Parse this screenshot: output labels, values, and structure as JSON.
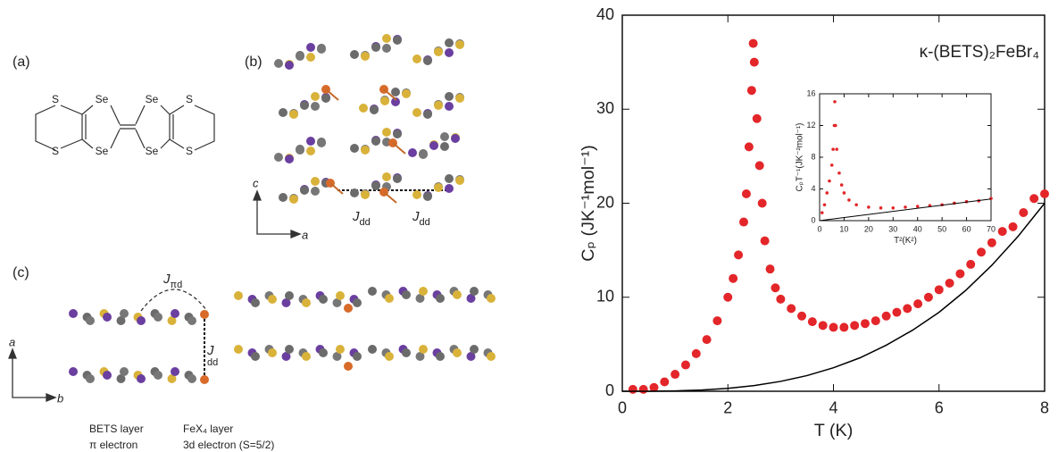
{
  "chart_data": [
    {
      "type": "scatter",
      "xlabel": "T (K)",
      "ylabel": "Cₚ (JK⁻¹mol⁻¹)",
      "annotation": "κ-(BETS)₂FeBr₄",
      "xlim": [
        0,
        8
      ],
      "ylim": [
        0,
        40
      ],
      "xticks": [
        0,
        2,
        4,
        6,
        8
      ],
      "yticks": [
        0,
        10,
        20,
        30,
        40
      ],
      "series": [
        {
          "color": "#e3262a",
          "style": "points",
          "x": [
            0.2,
            0.4,
            0.6,
            0.8,
            1.0,
            1.2,
            1.4,
            1.6,
            1.8,
            2.0,
            2.1,
            2.2,
            2.3,
            2.35,
            2.4,
            2.45,
            2.48,
            2.5,
            2.55,
            2.6,
            2.65,
            2.7,
            2.8,
            2.9,
            3.0,
            3.2,
            3.4,
            3.6,
            3.8,
            4.0,
            4.2,
            4.4,
            4.6,
            4.8,
            5.0,
            5.2,
            5.4,
            5.6,
            5.8,
            6.0,
            6.2,
            6.4,
            6.6,
            6.8,
            7.0,
            7.2,
            7.4,
            7.6,
            7.8,
            8.0
          ],
          "values": [
            0.2,
            0.2,
            0.4,
            1,
            1.8,
            2.8,
            4,
            5.5,
            7.5,
            10,
            12,
            14.5,
            18,
            21,
            26,
            32,
            37,
            35,
            29,
            24,
            20,
            16,
            13,
            11,
            9.8,
            8.8,
            8,
            7.4,
            7,
            6.8,
            6.8,
            7,
            7.2,
            7.5,
            8,
            8.4,
            8.8,
            9.3,
            10,
            10.8,
            11.5,
            12.5,
            13.5,
            14.8,
            15.8,
            17,
            17.5,
            19,
            20.5,
            21
          ]
        },
        {
          "color": "#000000",
          "style": "line",
          "x": [
            0,
            0.5,
            1,
            1.5,
            2,
            2.5,
            3,
            3.5,
            4,
            4.5,
            5,
            5.5,
            6,
            6.5,
            7,
            7.5,
            8
          ],
          "values": [
            0,
            0.005,
            0.04,
            0.13,
            0.31,
            0.61,
            1.05,
            1.67,
            2.5,
            3.55,
            4.9,
            6.5,
            8.4,
            10.7,
            13.4,
            16.5,
            20
          ]
        }
      ]
    },
    {
      "type": "scatter",
      "xlabel": "T²(K²)",
      "ylabel": "CₚT⁻¹(JK⁻²mol⁻¹)",
      "xlim": [
        0,
        70
      ],
      "ylim": [
        0,
        16
      ],
      "xticks": [
        0,
        10,
        20,
        30,
        40,
        50,
        60,
        70
      ],
      "yticks": [
        0,
        4,
        8,
        12,
        16
      ],
      "series": [
        {
          "color": "#e3262a",
          "style": "points",
          "x": [
            1,
            2,
            3,
            4,
            5,
            5.5,
            6,
            6.2,
            6.5,
            7,
            8,
            9,
            10,
            12,
            15,
            20,
            25,
            30,
            35,
            40,
            45,
            50,
            55,
            60,
            65,
            70
          ],
          "values": [
            1,
            2,
            3.5,
            5,
            7,
            9,
            12,
            15,
            12,
            9,
            6,
            4.5,
            3.5,
            2.6,
            2,
            1.7,
            1.6,
            1.6,
            1.7,
            1.8,
            1.9,
            2,
            2.2,
            2.4,
            2.5,
            2.8
          ]
        },
        {
          "color": "#000000",
          "style": "line",
          "x": [
            0,
            70
          ],
          "values": [
            0,
            2.73
          ]
        }
      ]
    }
  ],
  "panels": {
    "a": {
      "label": "(a)",
      "atoms": [
        "S",
        "Se",
        "Se",
        "S",
        "S",
        "Se",
        "Se",
        "S"
      ]
    },
    "b": {
      "label": "(b)",
      "axis_up": "c",
      "axis_right": "a",
      "couplings": [
        {
          "main": "J",
          "sub": "dd"
        },
        {
          "main": "J",
          "sub": "dd"
        }
      ]
    },
    "c": {
      "label": "(c)",
      "axis_up": "a",
      "axis_right": "b",
      "coupling_pi": {
        "main": "J",
        "sub": "πd"
      },
      "coupling_dd": {
        "main": "J",
        "sub": "dd"
      },
      "legend": [
        "BETS layer",
        "π electron",
        "FeX₄ layer",
        "3d electron (S=5/2)"
      ]
    }
  }
}
